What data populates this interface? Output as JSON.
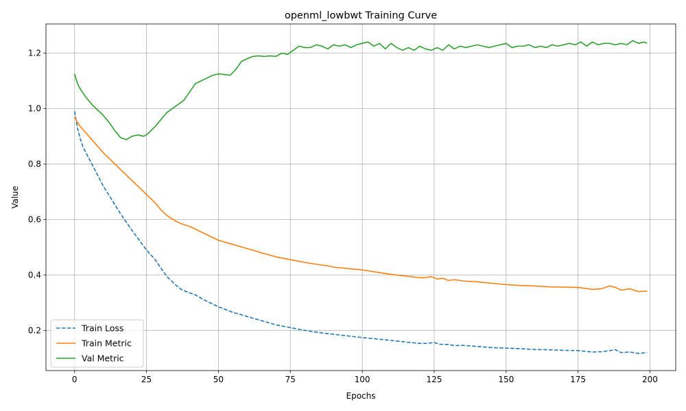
{
  "chart_data": {
    "type": "line",
    "title": "openml_lowbwt Training Curve",
    "xlabel": "Epochs",
    "ylabel": "Value",
    "xlim": [
      -9.95,
      208.95
    ],
    "ylim": [
      0.055,
      1.305
    ],
    "xticks": [
      0,
      25,
      50,
      75,
      100,
      125,
      150,
      175,
      200
    ],
    "xtick_labels": [
      "0",
      "25",
      "50",
      "75",
      "100",
      "125",
      "150",
      "175",
      "200"
    ],
    "yticks": [
      0.2,
      0.4,
      0.6,
      0.8,
      1.0,
      1.2
    ],
    "ytick_labels": [
      "0.2",
      "0.4",
      "0.6",
      "0.8",
      "1.0",
      "1.2"
    ],
    "grid": true,
    "legend_position": "lower-left",
    "series": [
      {
        "name": "Train Loss",
        "color": "#1f77b4",
        "style": "dashed",
        "x": [
          0,
          1,
          2,
          3,
          5,
          8,
          10,
          13,
          16,
          20,
          25,
          28,
          30,
          32,
          35,
          37,
          40,
          42,
          45,
          50,
          55,
          60,
          65,
          70,
          75,
          80,
          85,
          90,
          95,
          100,
          105,
          110,
          115,
          120,
          122,
          125,
          127,
          130,
          132,
          135,
          140,
          145,
          150,
          155,
          160,
          165,
          170,
          175,
          180,
          183,
          186,
          188,
          190,
          193,
          196,
          199
        ],
        "y": [
          0.99,
          0.93,
          0.89,
          0.86,
          0.82,
          0.76,
          0.72,
          0.67,
          0.62,
          0.56,
          0.49,
          0.455,
          0.425,
          0.395,
          0.365,
          0.348,
          0.335,
          0.328,
          0.31,
          0.285,
          0.265,
          0.25,
          0.235,
          0.22,
          0.21,
          0.2,
          0.192,
          0.186,
          0.18,
          0.174,
          0.169,
          0.164,
          0.158,
          0.153,
          0.153,
          0.156,
          0.15,
          0.149,
          0.145,
          0.146,
          0.142,
          0.138,
          0.136,
          0.134,
          0.131,
          0.13,
          0.128,
          0.127,
          0.122,
          0.123,
          0.127,
          0.13,
          0.12,
          0.122,
          0.117,
          0.12
        ]
      },
      {
        "name": "Train Metric",
        "color": "#ff7f0e",
        "style": "solid",
        "x": [
          0,
          1,
          2,
          5,
          10,
          15,
          20,
          25,
          28,
          30,
          32,
          35,
          37,
          40,
          45,
          50,
          55,
          60,
          65,
          70,
          75,
          80,
          85,
          88,
          90,
          95,
          100,
          105,
          110,
          115,
          120,
          122,
          124,
          126,
          128,
          130,
          132,
          135,
          140,
          145,
          150,
          155,
          160,
          165,
          170,
          175,
          180,
          183,
          186,
          188,
          190,
          193,
          196,
          199
        ],
        "y": [
          0.97,
          0.95,
          0.935,
          0.9,
          0.84,
          0.79,
          0.74,
          0.69,
          0.66,
          0.635,
          0.615,
          0.595,
          0.585,
          0.575,
          0.55,
          0.525,
          0.51,
          0.495,
          0.48,
          0.465,
          0.455,
          0.445,
          0.437,
          0.433,
          0.428,
          0.423,
          0.418,
          0.41,
          0.402,
          0.396,
          0.39,
          0.39,
          0.394,
          0.385,
          0.388,
          0.38,
          0.383,
          0.378,
          0.375,
          0.37,
          0.365,
          0.362,
          0.36,
          0.357,
          0.356,
          0.355,
          0.348,
          0.35,
          0.36,
          0.355,
          0.345,
          0.35,
          0.34,
          0.342
        ]
      },
      {
        "name": "Val Metric",
        "color": "#2ca02c",
        "style": "solid",
        "x": [
          0,
          1,
          2,
          4,
          6,
          8,
          10,
          12,
          14,
          16,
          18,
          20,
          22,
          24,
          25,
          26,
          28,
          30,
          32,
          34,
          36,
          38,
          40,
          42,
          44,
          46,
          48,
          50,
          52,
          54,
          56,
          58,
          60,
          62,
          64,
          66,
          68,
          70,
          72,
          74,
          76,
          78,
          80,
          82,
          84,
          86,
          88,
          90,
          92,
          94,
          96,
          98,
          100,
          102,
          104,
          106,
          108,
          110,
          112,
          114,
          116,
          118,
          120,
          122,
          124,
          126,
          128,
          130,
          132,
          134,
          136,
          138,
          140,
          142,
          144,
          146,
          148,
          150,
          152,
          154,
          156,
          158,
          160,
          162,
          164,
          166,
          168,
          170,
          172,
          174,
          176,
          178,
          180,
          182,
          184,
          186,
          188,
          190,
          192,
          194,
          196,
          198,
          199
        ],
        "y": [
          1.125,
          1.09,
          1.07,
          1.04,
          1.015,
          0.995,
          0.975,
          0.95,
          0.92,
          0.895,
          0.888,
          0.9,
          0.905,
          0.9,
          0.905,
          0.915,
          0.935,
          0.96,
          0.985,
          1.0,
          1.015,
          1.03,
          1.06,
          1.09,
          1.1,
          1.11,
          1.12,
          1.125,
          1.123,
          1.12,
          1.14,
          1.17,
          1.18,
          1.188,
          1.19,
          1.188,
          1.19,
          1.188,
          1.2,
          1.195,
          1.21,
          1.225,
          1.22,
          1.22,
          1.23,
          1.225,
          1.215,
          1.23,
          1.225,
          1.23,
          1.22,
          1.23,
          1.235,
          1.24,
          1.225,
          1.235,
          1.215,
          1.235,
          1.22,
          1.21,
          1.22,
          1.21,
          1.225,
          1.215,
          1.21,
          1.22,
          1.21,
          1.23,
          1.215,
          1.225,
          1.22,
          1.225,
          1.23,
          1.225,
          1.22,
          1.225,
          1.23,
          1.235,
          1.22,
          1.225,
          1.225,
          1.23,
          1.22,
          1.225,
          1.22,
          1.23,
          1.225,
          1.23,
          1.235,
          1.23,
          1.24,
          1.225,
          1.24,
          1.23,
          1.235,
          1.235,
          1.23,
          1.235,
          1.23,
          1.245,
          1.235,
          1.24,
          1.235
        ]
      }
    ]
  }
}
